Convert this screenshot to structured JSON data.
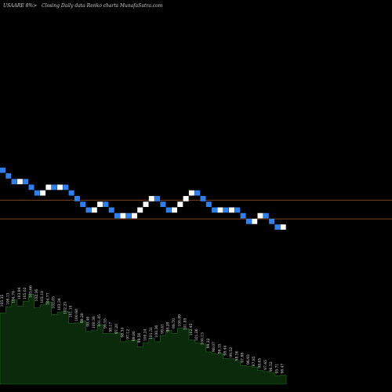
{
  "chart_data": {
    "type": "renko",
    "title": "USAARE 8%>",
    "subtitle": "Closing Daily data Renko charts MunafaSutra.com",
    "ref_lines": [
      101.27,
      97.98
    ],
    "colors": {
      "background": "#000000",
      "up_brick": "#ffffff",
      "down_brick": "#2f80ed",
      "ref_line": "#8b4a22",
      "volume_area": "#0b2a0b",
      "volume_edge": "#1f6b1f"
    },
    "bricks": [
      {
        "dir": "down",
        "close": 106.0
      },
      {
        "dir": "down",
        "close": 105.0
      },
      {
        "dir": "down",
        "close": 104.0
      },
      {
        "dir": "up",
        "close": 105.0
      },
      {
        "dir": "down",
        "close": 104.0
      },
      {
        "dir": "down",
        "close": 103.0
      },
      {
        "dir": "down",
        "close": 102.0
      },
      {
        "dir": "up",
        "close": 103.0
      },
      {
        "dir": "up",
        "close": 104.0
      },
      {
        "dir": "down",
        "close": 103.0
      },
      {
        "dir": "up",
        "close": 104.0
      },
      {
        "dir": "down",
        "close": 103.0
      },
      {
        "dir": "down",
        "close": 102.0
      },
      {
        "dir": "down",
        "close": 101.0
      },
      {
        "dir": "down",
        "close": 100.0
      },
      {
        "dir": "down",
        "close": 99.0
      },
      {
        "dir": "up",
        "close": 100.0
      },
      {
        "dir": "up",
        "close": 101.0
      },
      {
        "dir": "down",
        "close": 100.0
      },
      {
        "dir": "down",
        "close": 99.0
      },
      {
        "dir": "down",
        "close": 98.0
      },
      {
        "dir": "up",
        "close": 99.0
      },
      {
        "dir": "down",
        "close": 98.0
      },
      {
        "dir": "up",
        "close": 99.0
      },
      {
        "dir": "up",
        "close": 100.0
      },
      {
        "dir": "up",
        "close": 101.0
      },
      {
        "dir": "up",
        "close": 102.0
      },
      {
        "dir": "down",
        "close": 101.0
      },
      {
        "dir": "down",
        "close": 100.0
      },
      {
        "dir": "down",
        "close": 99.0
      },
      {
        "dir": "up",
        "close": 100.0
      },
      {
        "dir": "up",
        "close": 101.0
      },
      {
        "dir": "up",
        "close": 102.0
      },
      {
        "dir": "up",
        "close": 103.0
      },
      {
        "dir": "down",
        "close": 102.0
      },
      {
        "dir": "down",
        "close": 101.0
      },
      {
        "dir": "down",
        "close": 100.0
      },
      {
        "dir": "down",
        "close": 99.0
      },
      {
        "dir": "up",
        "close": 100.0
      },
      {
        "dir": "down",
        "close": 99.0
      },
      {
        "dir": "up",
        "close": 100.0
      },
      {
        "dir": "down",
        "close": 99.0
      },
      {
        "dir": "down",
        "close": 98.0
      },
      {
        "dir": "down",
        "close": 97.0
      },
      {
        "dir": "up",
        "close": 98.0
      },
      {
        "dir": "up",
        "close": 99.0
      },
      {
        "dir": "down",
        "close": 98.0
      },
      {
        "dir": "down",
        "close": 97.0
      },
      {
        "dir": "down",
        "close": 96.0
      },
      {
        "dir": "up",
        "close": 97.0
      }
    ],
    "volume_profile": [
      42,
      43,
      44,
      46,
      46,
      47,
      45,
      44,
      43,
      41,
      40,
      38,
      36,
      34,
      33,
      31,
      30,
      31,
      30,
      28,
      27,
      25,
      24,
      23,
      22,
      23,
      24,
      25,
      27,
      28,
      30,
      31,
      29,
      26,
      23,
      21,
      19,
      17,
      16,
      15,
      14,
      12,
      11,
      10,
      9,
      8,
      7,
      6,
      5,
      5
    ],
    "labels": [
      {
        "i": 0,
        "text": "105.35"
      },
      {
        "i": 1,
        "text": "106.13"
      },
      {
        "i": 2,
        "text": "104.74"
      },
      {
        "i": 3,
        "text": "103.84"
      },
      {
        "i": 4,
        "text": "105.02"
      },
      {
        "i": 5,
        "text": "103.66"
      },
      {
        "i": 6,
        "text": "102.36"
      },
      {
        "i": 7,
        "text": "103.18"
      },
      {
        "i": 8,
        "text": "104.77"
      },
      {
        "i": 9,
        "text": "102.05"
      },
      {
        "i": 10,
        "text": "103.34"
      },
      {
        "i": 11,
        "text": "102.25"
      },
      {
        "i": 12,
        "text": "101.10"
      },
      {
        "i": 13,
        "text": "100.68"
      },
      {
        "i": 14,
        "text": "99.28"
      },
      {
        "i": 15,
        "text": "98.46"
      },
      {
        "i": 16,
        "text": "100.36"
      },
      {
        "i": 17,
        "text": "101.05"
      },
      {
        "i": 18,
        "text": "99.55"
      },
      {
        "i": 19,
        "text": "98.17"
      },
      {
        "i": 20,
        "text": "97.20"
      },
      {
        "i": 21,
        "text": "98.34"
      },
      {
        "i": 22,
        "text": "97.12"
      },
      {
        "i": 23,
        "text": "98.80"
      },
      {
        "i": 24,
        "text": "99.50"
      },
      {
        "i": 25,
        "text": "100.24"
      },
      {
        "i": 26,
        "text": "101.51"
      },
      {
        "i": 27,
        "text": "100.36"
      },
      {
        "i": 28,
        "text": "99.41"
      },
      {
        "i": 29,
        "text": "98.28"
      },
      {
        "i": 30,
        "text": "99.70"
      },
      {
        "i": 31,
        "text": "100.89"
      },
      {
        "i": 32,
        "text": "101.85"
      },
      {
        "i": 33,
        "text": "102.45"
      },
      {
        "i": 34,
        "text": "101.26"
      },
      {
        "i": 35,
        "text": "100.13"
      },
      {
        "i": 36,
        "text": "99.22"
      },
      {
        "i": 37,
        "text": "98.07"
      },
      {
        "i": 38,
        "text": "99.15"
      },
      {
        "i": 39,
        "text": "98.44"
      },
      {
        "i": 40,
        "text": "99.52"
      },
      {
        "i": 41,
        "text": "98.36"
      },
      {
        "i": 42,
        "text": "97.88"
      },
      {
        "i": 43,
        "text": "96.93"
      },
      {
        "i": 44,
        "text": "97.85"
      },
      {
        "i": 45,
        "text": "98.65"
      },
      {
        "i": 46,
        "text": "97.45"
      },
      {
        "i": 47,
        "text": "96.52"
      },
      {
        "i": 48,
        "text": "95.71"
      },
      {
        "i": 49,
        "text": "96.47"
      }
    ]
  }
}
